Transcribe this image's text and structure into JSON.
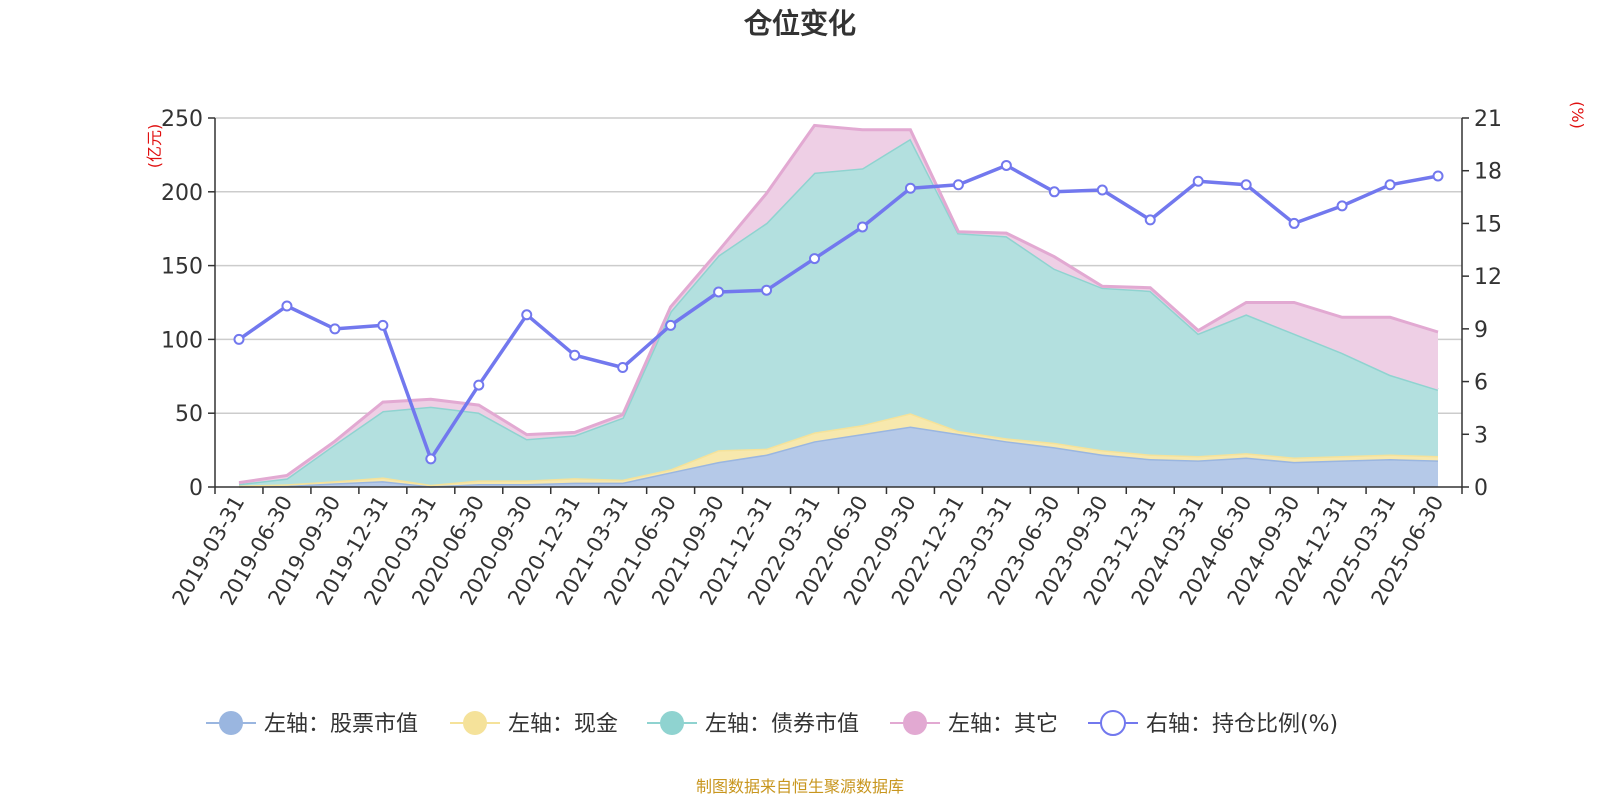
{
  "chart_data": {
    "type": "area",
    "title": "仓位变化",
    "left_axis_unit": "(亿元)",
    "right_axis_unit": "(%)",
    "ylim_left": [
      0,
      250
    ],
    "yticks_left": [
      "0",
      "50",
      "100",
      "150",
      "200",
      "250"
    ],
    "ylim_right": [
      0,
      21
    ],
    "yticks_right": [
      "0",
      "3",
      "6",
      "9",
      "12",
      "15",
      "18",
      "21"
    ],
    "grid": true,
    "legend_position": "bottom",
    "categories": [
      "2019-03-31",
      "2019-06-30",
      "2019-09-30",
      "2019-12-31",
      "2020-03-31",
      "2020-06-30",
      "2020-09-30",
      "2020-12-31",
      "2021-03-31",
      "2021-06-30",
      "2021-09-30",
      "2021-12-31",
      "2022-03-31",
      "2022-06-30",
      "2022-09-30",
      "2022-12-31",
      "2023-03-31",
      "2023-06-30",
      "2023-09-30",
      "2023-12-31",
      "2024-03-31",
      "2024-06-30",
      "2024-09-30",
      "2024-12-31",
      "2025-03-31",
      "2025-06-30"
    ],
    "stacked_series": [
      {
        "name": "左轴：股票市值",
        "color": "#9ab6e0",
        "fill": "#b5c9e8",
        "values": [
          0.5,
          0.8,
          2.5,
          4,
          0.5,
          2,
          2,
          3,
          3,
          10,
          17,
          22,
          31,
          36,
          41,
          36,
          31,
          27,
          22,
          19,
          18,
          20,
          17,
          18,
          19,
          18
        ]
      },
      {
        "name": "左轴：现金",
        "color": "#f5e29a",
        "fill": "#f7e8ad",
        "values": [
          0.5,
          1,
          1.5,
          2.5,
          1,
          2.5,
          2.5,
          3,
          2,
          2,
          8,
          4,
          6,
          6,
          9,
          2,
          2,
          3,
          3,
          3,
          3,
          3,
          3,
          3,
          3,
          3
        ]
      },
      {
        "name": "左轴：债券市值",
        "color": "#8fd3d0",
        "fill": "#b3e0df",
        "values": [
          1,
          4,
          25,
          45,
          53,
          46,
          28,
          29,
          42,
          107,
          132,
          153,
          176,
          174,
          186,
          134,
          137,
          118,
          110,
          111,
          83,
          94,
          84,
          70,
          54,
          45
        ]
      },
      {
        "name": "左轴：其它",
        "color": "#e2a9d2",
        "fill": "#eecfe5",
        "values": [
          1,
          2,
          2,
          6,
          5,
          5,
          3,
          2,
          2,
          3,
          3,
          20,
          32,
          26,
          6,
          1,
          2,
          8,
          1,
          2,
          2,
          8,
          21,
          24,
          39,
          39
        ]
      }
    ],
    "line_series": {
      "name": "右轴：持仓比例(%)",
      "color": "#7278ee",
      "axis": "right",
      "values": [
        8.4,
        10.3,
        9.0,
        9.2,
        1.6,
        5.8,
        9.8,
        7.5,
        6.8,
        9.2,
        11.1,
        11.2,
        13.0,
        14.8,
        17.0,
        17.2,
        18.3,
        16.8,
        16.9,
        15.2,
        17.4,
        17.2,
        15.0,
        16.0,
        17.2,
        17.7
      ]
    }
  },
  "source": "制图数据来自恒生聚源数据库"
}
